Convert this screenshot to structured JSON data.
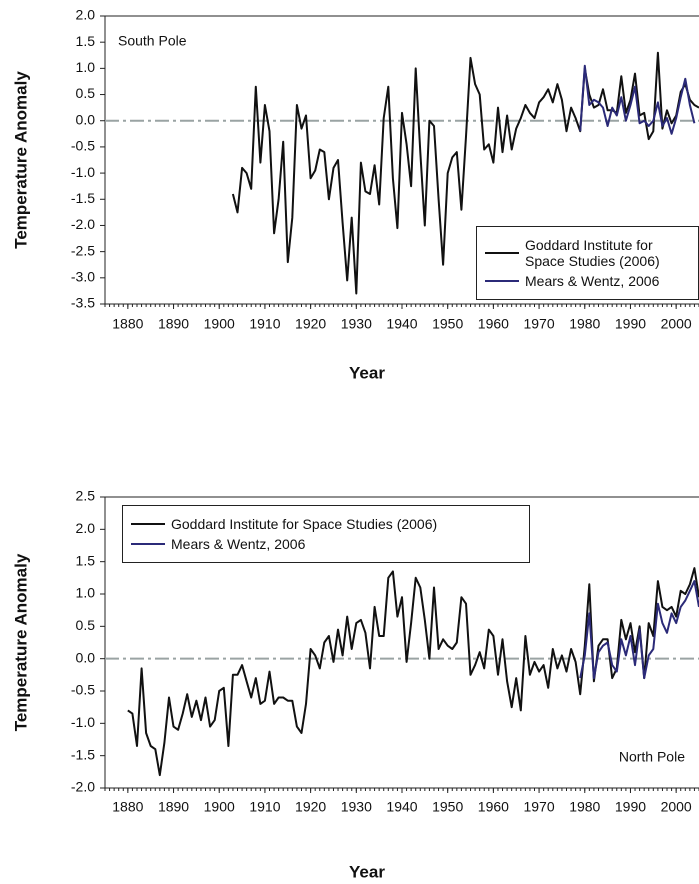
{
  "chart_data": [
    {
      "type": "line",
      "annotation": "South Pole",
      "annotation_position": "upper left",
      "xlabel": "Year",
      "ylabel": "Temperature Anomaly",
      "xlim": [
        1875,
        2005
      ],
      "xticks": [
        1880,
        1890,
        1900,
        1910,
        1920,
        1930,
        1940,
        1950,
        1960,
        1970,
        1980,
        1990,
        2000
      ],
      "ylim": [
        -3.5,
        2.0
      ],
      "yticks": [
        {
          "value": -3.5,
          "label": "-3.5"
        },
        {
          "value": -3,
          "label": "-3.0"
        },
        {
          "value": -2.5,
          "label": "-2.5"
        },
        {
          "value": -2,
          "label": "-2.0"
        },
        {
          "value": -1.5,
          "label": "-1.5"
        },
        {
          "value": -1,
          "label": "-1.0"
        },
        {
          "value": -0.5,
          "label": "-0.5"
        },
        {
          "value": 0,
          "label": "0.0"
        },
        {
          "value": 0.5,
          "label": "0.5"
        },
        {
          "value": 1,
          "label": "1.0"
        },
        {
          "value": 1.5,
          "label": "1.5"
        },
        {
          "value": 2,
          "label": "2.0"
        }
      ],
      "reference_line": 0,
      "legend_position": "lower right",
      "series": [
        {
          "name": "Goddard Institute for Space Studies (2006)",
          "color": "#111111",
          "x": [
            1903,
            1904,
            1905,
            1906,
            1907,
            1908,
            1909,
            1910,
            1911,
            1912,
            1913,
            1914,
            1915,
            1916,
            1917,
            1918,
            1919,
            1920,
            1921,
            1922,
            1923,
            1924,
            1925,
            1926,
            1927,
            1928,
            1929,
            1930,
            1931,
            1932,
            1933,
            1934,
            1935,
            1936,
            1937,
            1938,
            1939,
            1940,
            1941,
            1942,
            1943,
            1944,
            1945,
            1946,
            1947,
            1948,
            1949,
            1950,
            1951,
            1952,
            1953,
            1954,
            1955,
            1956,
            1957,
            1958,
            1959,
            1960,
            1961,
            1962,
            1963,
            1964,
            1965,
            1966,
            1967,
            1968,
            1969,
            1970,
            1971,
            1972,
            1973,
            1974,
            1975,
            1976,
            1977,
            1978,
            1979,
            1980,
            1981,
            1982,
            1983,
            1984,
            1985,
            1986,
            1987,
            1988,
            1989,
            1990,
            1991,
            1992,
            1993,
            1994,
            1995,
            1996,
            1997,
            1998,
            1999,
            2000,
            2001,
            2002,
            2003,
            2004,
            2005
          ],
          "values": [
            -1.4,
            -1.75,
            -0.9,
            -1.0,
            -1.3,
            0.65,
            -0.8,
            0.3,
            -0.2,
            -2.15,
            -1.5,
            -0.4,
            -2.7,
            -1.85,
            0.3,
            -0.15,
            0.1,
            -1.1,
            -0.95,
            -0.55,
            -0.6,
            -1.5,
            -0.9,
            -0.75,
            -1.95,
            -3.05,
            -1.85,
            -3.3,
            -0.8,
            -1.35,
            -1.4,
            -0.85,
            -1.6,
            0.05,
            0.65,
            -1.1,
            -2.05,
            0.15,
            -0.45,
            -1.25,
            1.0,
            -0.6,
            -2.0,
            0.0,
            -0.1,
            -1.5,
            -2.75,
            -1.0,
            -0.7,
            -0.6,
            -1.7,
            -0.3,
            1.2,
            0.7,
            0.5,
            -0.55,
            -0.45,
            -0.8,
            0.25,
            -0.6,
            0.1,
            -0.55,
            -0.15,
            0.05,
            0.3,
            0.15,
            0.05,
            0.35,
            0.45,
            0.6,
            0.35,
            0.7,
            0.4,
            -0.2,
            0.25,
            0.05,
            -0.2,
            1.0,
            0.5,
            0.25,
            0.3,
            0.6,
            0.2,
            0.2,
            0.15,
            0.85,
            0.15,
            0.4,
            0.9,
            0.1,
            0.15,
            -0.35,
            -0.2,
            1.3,
            -0.15,
            0.2,
            -0.05,
            0.1,
            0.55,
            0.7,
            0.4,
            0.3,
            0.25
          ]
        },
        {
          "name": "Mears & Wentz, 2006",
          "color": "#2b2a78",
          "x": [
            1979,
            1980,
            1981,
            1982,
            1983,
            1984,
            1985,
            1986,
            1987,
            1988,
            1989,
            1990,
            1991,
            1992,
            1993,
            1994,
            1995,
            1996,
            1997,
            1998,
            1999,
            2000,
            2001,
            2002,
            2003,
            2004
          ],
          "values": [
            -0.2,
            1.05,
            0.3,
            0.4,
            0.35,
            0.25,
            -0.1,
            0.25,
            0.1,
            0.45,
            0.0,
            0.3,
            0.65,
            -0.05,
            0.0,
            -0.1,
            0.0,
            0.35,
            -0.1,
            0.05,
            -0.25,
            0.05,
            0.45,
            0.8,
            0.3,
            -0.05
          ]
        }
      ]
    },
    {
      "type": "line",
      "annotation": "North Pole",
      "annotation_position": "lower right",
      "xlabel": "Year",
      "ylabel": "Temperature Anomaly",
      "xlim": [
        1875,
        2005
      ],
      "xticks": [
        1880,
        1890,
        1900,
        1910,
        1920,
        1930,
        1940,
        1950,
        1960,
        1970,
        1980,
        1990,
        2000
      ],
      "ylim": [
        -2.0,
        2.5
      ],
      "yticks": [
        {
          "value": -2,
          "label": "-2.0"
        },
        {
          "value": -1.5,
          "label": "-1.5"
        },
        {
          "value": -1,
          "label": "-1.0"
        },
        {
          "value": -0.5,
          "label": "-0.5"
        },
        {
          "value": 0,
          "label": "0.0"
        },
        {
          "value": 0.5,
          "label": "0.5"
        },
        {
          "value": 1,
          "label": "1.0"
        },
        {
          "value": 1.5,
          "label": "1.5"
        },
        {
          "value": 2,
          "label": "2.0"
        },
        {
          "value": 2.5,
          "label": "2.5"
        }
      ],
      "reference_line": 0,
      "legend_position": "upper left",
      "series": [
        {
          "name": "Goddard Institute for Space Studies (2006)",
          "color": "#111111",
          "x": [
            1880,
            1881,
            1882,
            1883,
            1884,
            1885,
            1886,
            1887,
            1888,
            1889,
            1890,
            1891,
            1892,
            1893,
            1894,
            1895,
            1896,
            1897,
            1898,
            1899,
            1900,
            1901,
            1902,
            1903,
            1904,
            1905,
            1906,
            1907,
            1908,
            1909,
            1910,
            1911,
            1912,
            1913,
            1914,
            1915,
            1916,
            1917,
            1918,
            1919,
            1920,
            1921,
            1922,
            1923,
            1924,
            1925,
            1926,
            1927,
            1928,
            1929,
            1930,
            1931,
            1932,
            1933,
            1934,
            1935,
            1936,
            1937,
            1938,
            1939,
            1940,
            1941,
            1942,
            1943,
            1944,
            1945,
            1946,
            1947,
            1948,
            1949,
            1950,
            1951,
            1952,
            1953,
            1954,
            1955,
            1956,
            1957,
            1958,
            1959,
            1960,
            1961,
            1962,
            1963,
            1964,
            1965,
            1966,
            1967,
            1968,
            1969,
            1970,
            1971,
            1972,
            1973,
            1974,
            1975,
            1976,
            1977,
            1978,
            1979,
            1980,
            1981,
            1982,
            1983,
            1984,
            1985,
            1986,
            1987,
            1988,
            1989,
            1990,
            1991,
            1992,
            1993,
            1994,
            1995,
            1996,
            1997,
            1998,
            1999,
            2000,
            2001,
            2002,
            2003,
            2004,
            2005
          ],
          "values": [
            -0.8,
            -0.85,
            -1.35,
            -0.15,
            -1.15,
            -1.35,
            -1.4,
            -1.8,
            -1.3,
            -0.6,
            -1.05,
            -1.1,
            -0.85,
            -0.55,
            -0.9,
            -0.65,
            -0.95,
            -0.6,
            -1.05,
            -0.95,
            -0.5,
            -0.45,
            -1.35,
            -0.25,
            -0.25,
            -0.1,
            -0.35,
            -0.6,
            -0.3,
            -0.7,
            -0.65,
            -0.2,
            -0.7,
            -0.6,
            -0.6,
            -0.65,
            -0.65,
            -1.05,
            -1.15,
            -0.7,
            0.15,
            0.05,
            -0.15,
            0.25,
            0.35,
            -0.05,
            0.45,
            0.05,
            0.65,
            0.15,
            0.55,
            0.6,
            0.4,
            -0.15,
            0.8,
            0.35,
            0.35,
            1.25,
            1.35,
            0.65,
            0.95,
            -0.05,
            0.55,
            1.25,
            1.1,
            0.6,
            0.0,
            1.1,
            0.15,
            0.3,
            0.2,
            0.15,
            0.25,
            0.95,
            0.85,
            -0.25,
            -0.1,
            0.1,
            -0.15,
            0.45,
            0.35,
            -0.25,
            0.3,
            -0.35,
            -0.75,
            -0.3,
            -0.8,
            0.35,
            -0.25,
            -0.05,
            -0.2,
            -0.1,
            -0.45,
            0.15,
            -0.15,
            0.05,
            -0.2,
            0.15,
            -0.05,
            -0.55,
            0.2,
            1.15,
            -0.35,
            0.2,
            0.3,
            0.3,
            -0.3,
            -0.15,
            0.6,
            0.3,
            0.55,
            0.1,
            0.5,
            -0.3,
            0.55,
            0.35,
            1.2,
            0.8,
            0.75,
            0.8,
            0.65,
            1.05,
            1.0,
            1.15,
            1.4,
            0.95
          ]
        },
        {
          "name": "Mears & Wentz, 2006",
          "color": "#2b2a78",
          "x": [
            1979,
            1980,
            1981,
            1982,
            1983,
            1984,
            1985,
            1986,
            1987,
            1988,
            1989,
            1990,
            1991,
            1992,
            1993,
            1994,
            1995,
            1996,
            1997,
            1998,
            1999,
            2000,
            2001,
            2002,
            2003,
            2004,
            2005
          ],
          "values": [
            -0.3,
            0.05,
            0.7,
            -0.3,
            0.1,
            0.2,
            0.25,
            -0.1,
            -0.2,
            0.3,
            0.05,
            0.35,
            -0.1,
            0.45,
            -0.3,
            0.05,
            0.15,
            0.85,
            0.55,
            0.4,
            0.7,
            0.55,
            0.8,
            0.9,
            1.05,
            1.2,
            0.8
          ]
        }
      ]
    }
  ]
}
